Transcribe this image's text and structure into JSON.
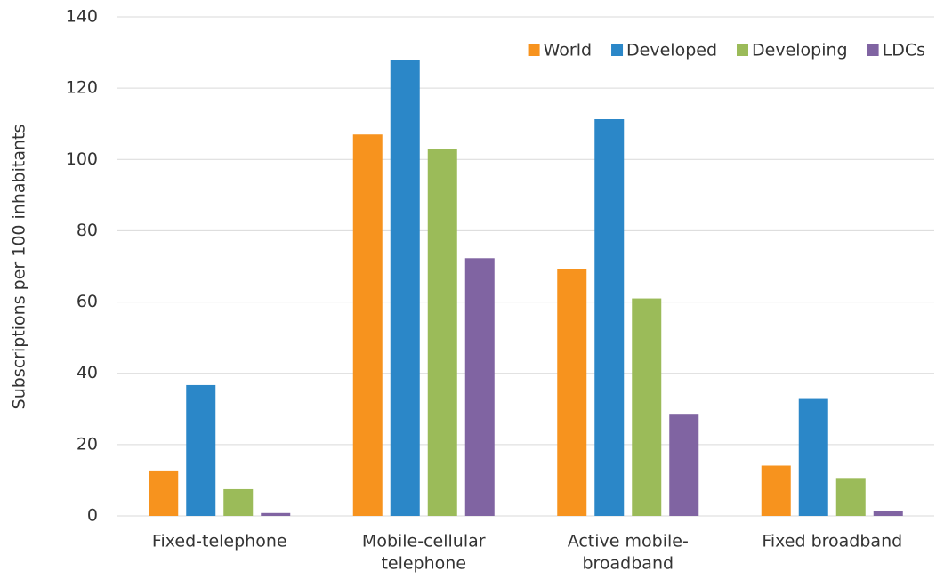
{
  "chart_data": {
    "type": "bar",
    "y_label": "Subscriptions per 100 inhabitants",
    "categories": [
      [
        "Fixed-telephone"
      ],
      [
        "Mobile-cellular",
        "telephone"
      ],
      [
        "Active mobile-",
        "broadband"
      ],
      [
        "Fixed broadband"
      ]
    ],
    "series": [
      {
        "name": "World",
        "color": "#f7931e",
        "values": [
          12.5,
          107,
          69.3,
          14.1
        ]
      },
      {
        "name": "Developed",
        "color": "#2b87c8",
        "values": [
          36.7,
          128,
          111.3,
          32.8
        ]
      },
      {
        "name": "Developing",
        "color": "#9bbb59",
        "values": [
          7.5,
          103,
          61,
          10.4
        ]
      },
      {
        "name": "LDCs",
        "color": "#8064a2",
        "values": [
          0.8,
          72.3,
          28.4,
          1.5
        ]
      }
    ],
    "ylim": [
      0,
      140
    ],
    "yticks": [
      0,
      20,
      40,
      60,
      80,
      100,
      120,
      140
    ],
    "grid": true,
    "legend": "top-right"
  }
}
